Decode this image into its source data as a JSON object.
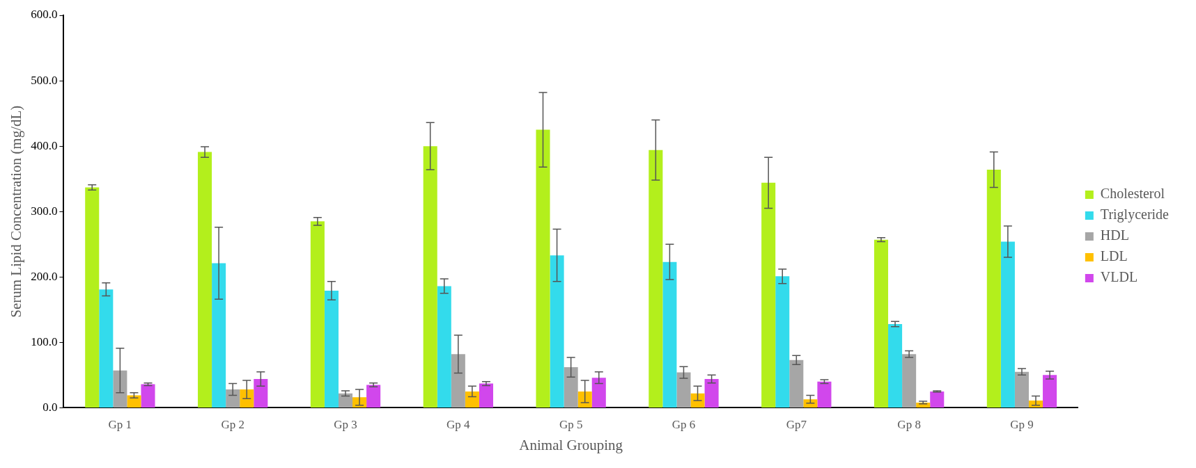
{
  "chart_data": {
    "type": "bar",
    "xlabel": "Animal Grouping",
    "ylabel": "Serum Lipid Concentration (mg/dL)",
    "categories": [
      "Gp 1",
      "Gp 2",
      "Gp 3",
      "Gp 4",
      "Gp 5",
      "Gp 6",
      "Gp7",
      "Gp 8",
      "Gp 9"
    ],
    "ylim": [
      0,
      600
    ],
    "yticks": [
      {
        "value": 0,
        "label": "0.0"
      },
      {
        "value": 100,
        "label": "100.0"
      },
      {
        "value": 200,
        "label": "200.0"
      },
      {
        "value": 300,
        "label": "300.0"
      },
      {
        "value": 400,
        "label": "400.0"
      },
      {
        "value": 500,
        "label": "500.0"
      },
      {
        "value": 600,
        "label": "600.0"
      }
    ],
    "grid": false,
    "legend": "right",
    "series": [
      {
        "name": "Cholesterol",
        "color": "#b3ef1c",
        "values": [
          337,
          391,
          285,
          400,
          425,
          394,
          344,
          257,
          364
        ],
        "errors": [
          4,
          8,
          6,
          36,
          57,
          46,
          39,
          3,
          27
        ]
      },
      {
        "name": "Triglyceride",
        "color": "#33dbec",
        "values": [
          181,
          221,
          179,
          186,
          233,
          223,
          201,
          128,
          254
        ],
        "errors": [
          10,
          55,
          14,
          11,
          40,
          27,
          11,
          4,
          24
        ]
      },
      {
        "name": "HDL",
        "color": "#a6a6a6",
        "values": [
          57,
          28,
          22,
          82,
          62,
          54,
          73,
          82,
          55
        ],
        "errors": [
          34,
          9,
          4,
          29,
          15,
          9,
          7,
          5,
          5
        ]
      },
      {
        "name": "LDL",
        "color": "#ffc000",
        "values": [
          19,
          28,
          16,
          25,
          25,
          22,
          13,
          8,
          11
        ],
        "errors": [
          4,
          14,
          12,
          8,
          17,
          11,
          6,
          2,
          7
        ]
      },
      {
        "name": "VLDL",
        "color": "#d147ec",
        "values": [
          36,
          44,
          35,
          37,
          46,
          44,
          40,
          25,
          50
        ],
        "errors": [
          2,
          11,
          3,
          3,
          9,
          6,
          3,
          1,
          6
        ]
      }
    ]
  }
}
